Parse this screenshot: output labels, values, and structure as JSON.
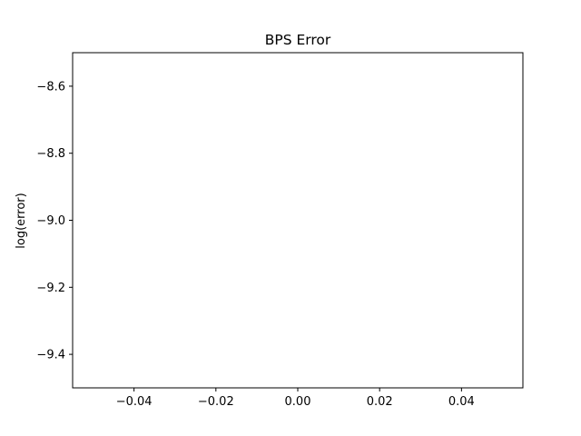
{
  "chart_data": {
    "type": "line",
    "title": "BPS Error",
    "xlabel": "",
    "ylabel": "log(error)",
    "xlim": [
      -0.055,
      0.055
    ],
    "ylim": [
      -9.5,
      -8.5
    ],
    "xticks": [
      -0.04,
      -0.02,
      0.0,
      0.02,
      0.04
    ],
    "xtick_labels": [
      "−0.04",
      "−0.02",
      "0.00",
      "0.02",
      "0.04"
    ],
    "yticks": [
      -8.6,
      -8.8,
      -9.0,
      -9.2,
      -9.4
    ],
    "ytick_labels": [
      "−8.6",
      "−8.8",
      "−9.0",
      "−9.2",
      "−9.4"
    ],
    "grid": false,
    "series": []
  }
}
